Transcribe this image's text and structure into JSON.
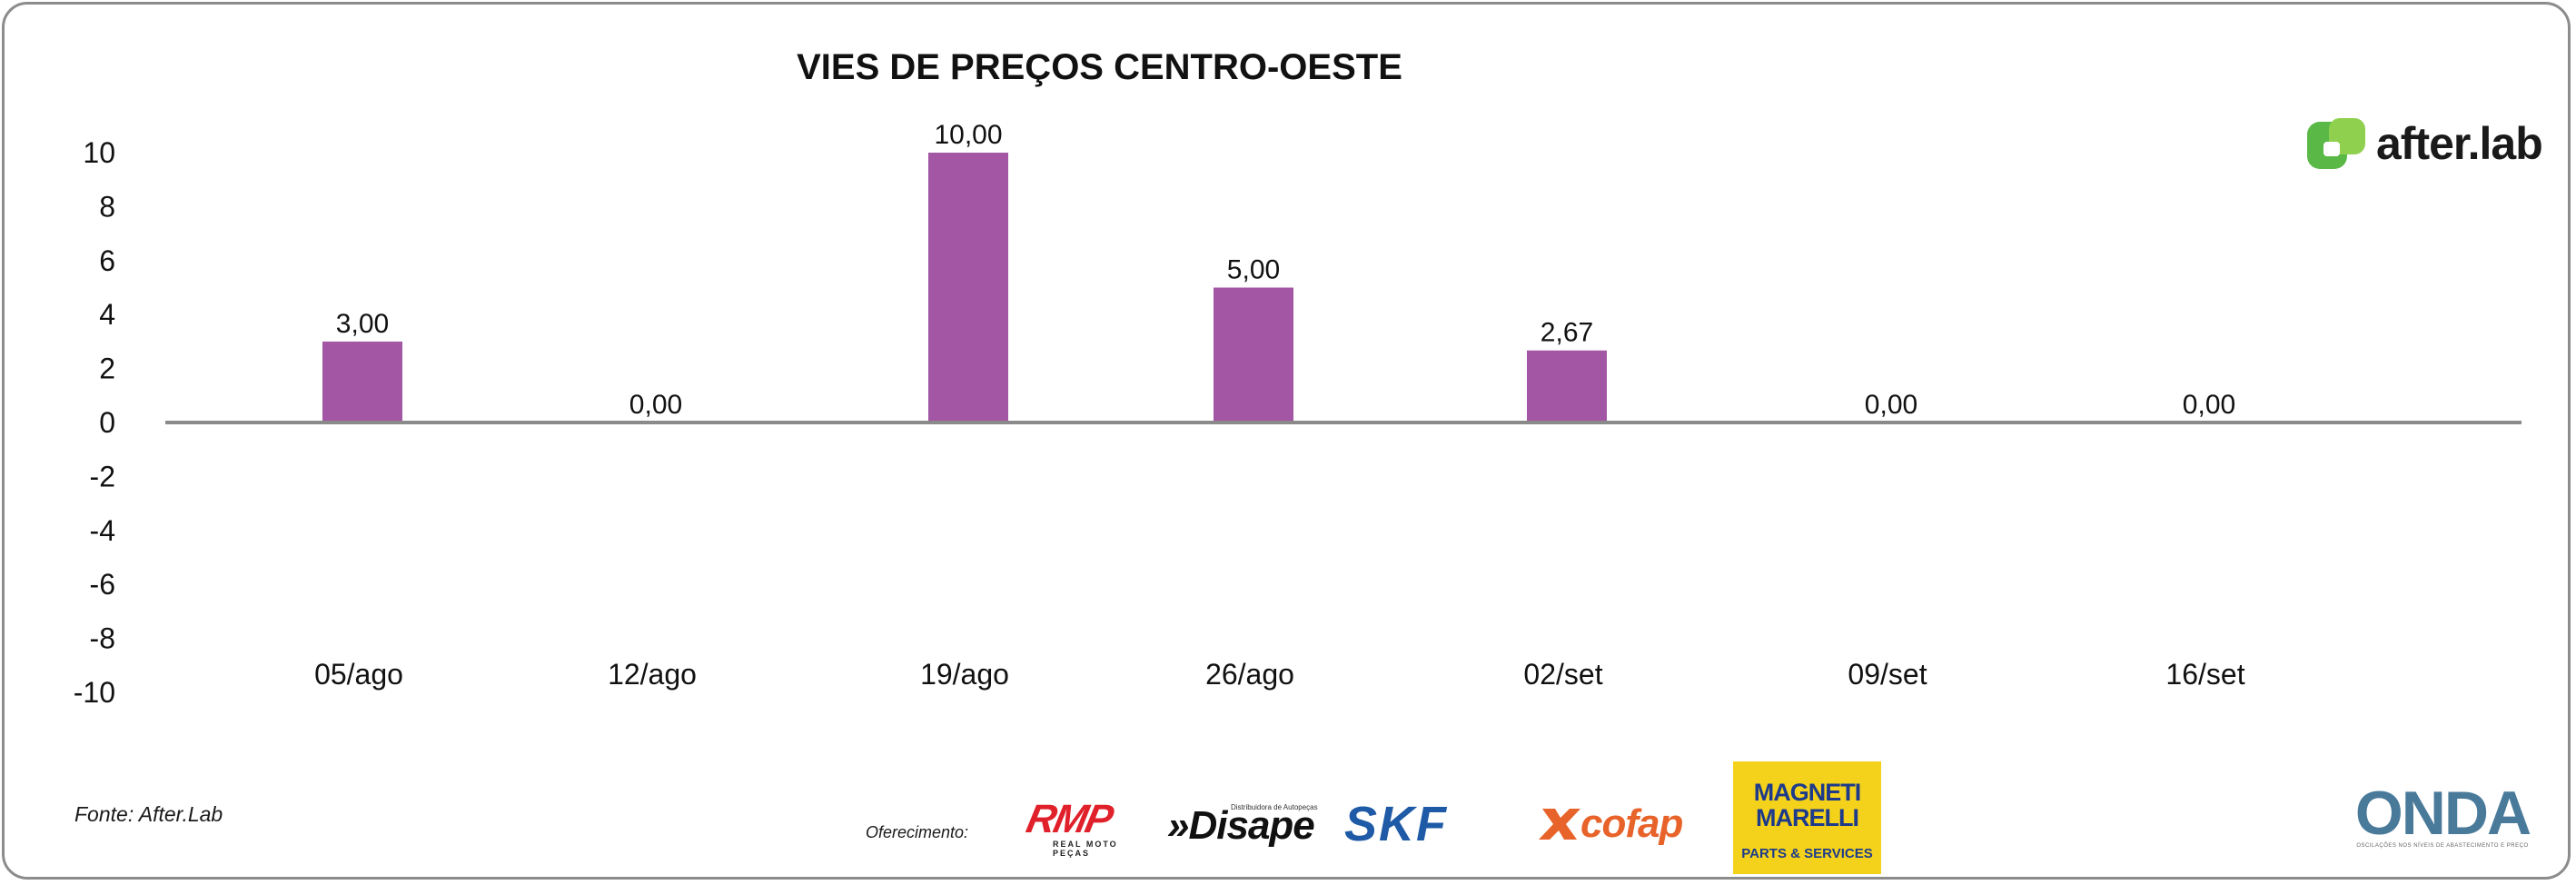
{
  "chart_data": {
    "type": "bar",
    "title": "VIES DE PREÇOS CENTRO-OESTE",
    "categories": [
      "05/ago",
      "12/ago",
      "19/ago",
      "26/ago",
      "02/set",
      "09/set",
      "16/set"
    ],
    "values": [
      3.0,
      0.0,
      10.0,
      5.0,
      2.67,
      0.0,
      0.0
    ],
    "data_labels": [
      "3,00",
      "0,00",
      "10,00",
      "5,00",
      "2,67",
      "0,00",
      "0,00"
    ],
    "ylim": [
      -10,
      10
    ],
    "yticks": [
      10,
      8,
      6,
      4,
      2,
      0,
      -2,
      -4,
      -6,
      -8,
      -10
    ],
    "bar_color": "#a256a3",
    "grid": false,
    "legend": "none"
  },
  "source_label": "Fonte: After.Lab",
  "sponsors_label": "Oferecimento:",
  "logos": {
    "brand": "after.lab",
    "brand_icon_color": "#5ab946",
    "rmp": "RMP",
    "rmp_sub": "REAL MOTO PEÇAS",
    "disape": "»Disape",
    "disape_sub": "Distribuidora de Autopeças",
    "skf": "SKF",
    "cofap": "cofap",
    "magneti": "MAGNETI MARELLI",
    "magneti_sub": "PARTS & SERVICES",
    "onda": "ONDA",
    "onda_sub": "OSCILAÇÕES NOS NÍVEIS DE ABASTECIMENTO E PREÇO"
  }
}
